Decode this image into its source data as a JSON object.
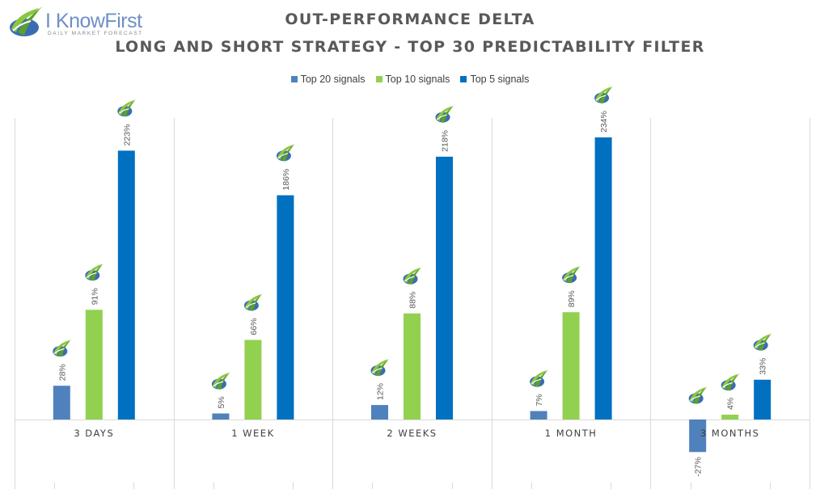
{
  "logo": {
    "name": "I KnowFirst",
    "tagline": "DAILY MARKET FORECAST"
  },
  "colors": {
    "top20": "#4f81bd",
    "top10": "#92d050",
    "top5": "#0070c0",
    "title": "#595959",
    "grid": "#d9d9d9",
    "axis_text": "#404040"
  },
  "chart_data": {
    "type": "bar",
    "title": "OUT-PERFORMANCE DELTA",
    "subtitle": "LONG AND SHORT STRATEGY - TOP 30 PREDICTABILITY FILTER",
    "categories": [
      "3 DAYS",
      "1 WEEK",
      "2 WEEKS",
      "1 MONTH",
      "3 MONTHS"
    ],
    "series": [
      {
        "name": "Top 20 signals",
        "values": [
          28,
          5,
          12,
          7,
          -27
        ],
        "labels": [
          "28%",
          "5%",
          "12%",
          "7%",
          "-27%"
        ]
      },
      {
        "name": "Top 10 signals",
        "values": [
          91,
          66,
          88,
          89,
          4
        ],
        "labels": [
          "91%",
          "66%",
          "88%",
          "89%",
          "4%"
        ]
      },
      {
        "name": "Top 5 signals",
        "values": [
          223,
          186,
          218,
          234,
          33
        ],
        "labels": [
          "223%",
          "186%",
          "218%",
          "234%",
          "33%"
        ]
      }
    ],
    "ylim": [
      -57,
      250
    ],
    "value_unit": "%",
    "legend_position": "top",
    "grid": "vertical category separators",
    "data_labels": "rotated, with logo icon above each bar"
  }
}
